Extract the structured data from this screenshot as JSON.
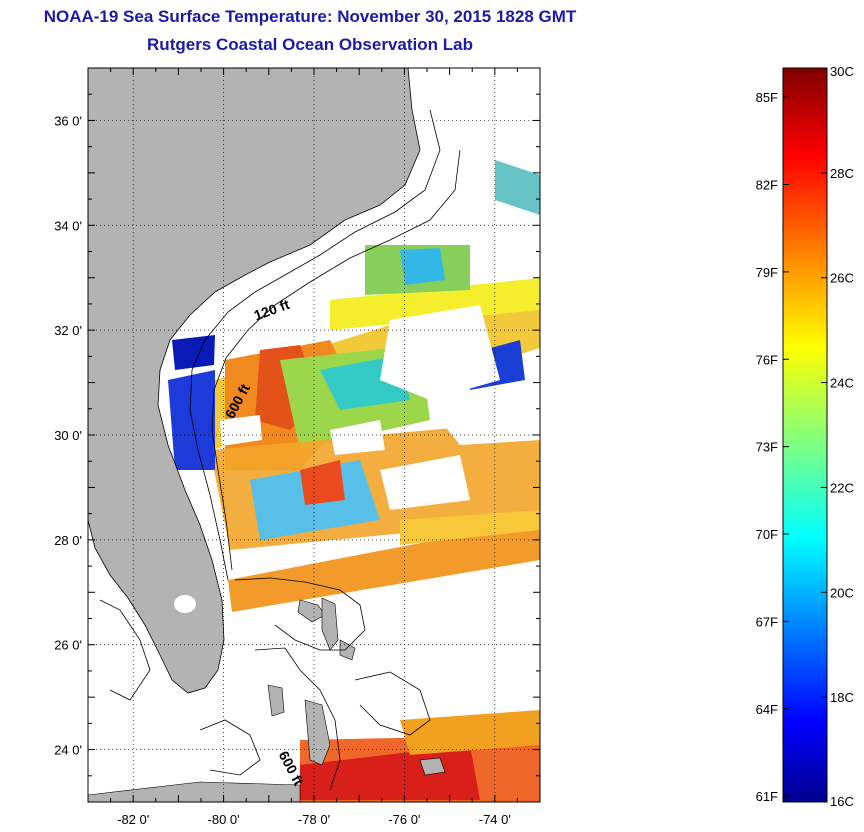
{
  "title": {
    "line1": "NOAA-19 Sea Surface Temperature:  November 30, 2015 1828 GMT",
    "line2": "Rutgers Coastal Ocean Observation Lab"
  },
  "map": {
    "lon_ticks": [
      {
        "value": -82,
        "label": "-82 0'"
      },
      {
        "value": -80,
        "label": "-80 0'"
      },
      {
        "value": -78,
        "label": "-78 0'"
      },
      {
        "value": -76,
        "label": "-76 0'"
      },
      {
        "value": -74,
        "label": "-74 0'"
      }
    ],
    "lat_ticks": [
      {
        "value": 36,
        "label": "36 0'"
      },
      {
        "value": 34,
        "label": "34 0'"
      },
      {
        "value": 32,
        "label": "32 0'"
      },
      {
        "value": 30,
        "label": "30 0'"
      },
      {
        "value": 28,
        "label": "28 0'"
      },
      {
        "value": 26,
        "label": "26 0'"
      },
      {
        "value": 24,
        "label": "24 0'"
      }
    ],
    "lon_range": [
      -83.0,
      -73.0
    ],
    "lat_range": [
      23.0,
      37.0
    ],
    "contour_labels": [
      {
        "text": "120 ft",
        "lon": -78.9,
        "lat": 32.3
      },
      {
        "text": "600 ft",
        "lon": -79.6,
        "lat": 30.6
      },
      {
        "text": "600 ft",
        "lon": -78.6,
        "lat": 23.6
      }
    ],
    "land_color": "#b3b3b3",
    "grid": "dotted"
  },
  "colorbar": {
    "fahrenheit_labels": [
      "85F",
      "82F",
      "79F",
      "76F",
      "73F",
      "70F",
      "67F",
      "64F",
      "61F"
    ],
    "celsius_labels": [
      "30C",
      "28C",
      "26C",
      "24C",
      "22C",
      "20C",
      "18C",
      "16C"
    ],
    "range_c": [
      16,
      30
    ],
    "colormap": "jet"
  }
}
